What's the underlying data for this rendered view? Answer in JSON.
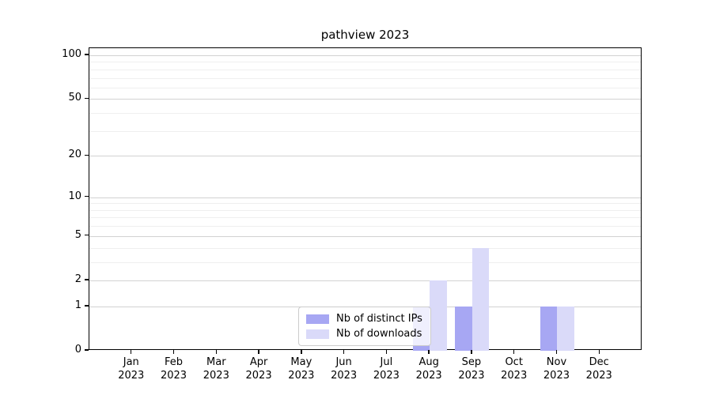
{
  "chart_data": {
    "type": "bar",
    "title": "pathview 2023",
    "categories": [
      "Jan",
      "Feb",
      "Mar",
      "Apr",
      "May",
      "Jun",
      "Jul",
      "Aug",
      "Sep",
      "Oct",
      "Nov",
      "Dec"
    ],
    "category_year": "2023",
    "series": [
      {
        "name": "Nb of distinct IPs",
        "color": "#a7a7f3",
        "values": [
          0,
          0,
          0,
          0,
          0,
          0,
          0,
          1,
          1,
          0,
          1,
          0
        ]
      },
      {
        "name": "Nb of downloads",
        "color": "#dadaf9",
        "values": [
          0,
          0,
          0,
          0,
          0,
          0,
          0,
          2,
          4,
          0,
          1,
          0
        ]
      }
    ],
    "scale": "log1p",
    "yticks": [
      0,
      1,
      2,
      5,
      10,
      20,
      50,
      100
    ],
    "minor_gridlines": [
      3,
      4,
      6,
      7,
      8,
      9,
      30,
      40,
      60,
      70,
      80,
      90
    ],
    "ylim": [
      0,
      112
    ],
    "xlabel": "",
    "ylabel": "",
    "grid": "horizontal",
    "legend_position": "inside-bottom-center",
    "frame_color": "#000000",
    "major_grid_color": "#d2d2d2",
    "minor_grid_color": "#efefef"
  }
}
